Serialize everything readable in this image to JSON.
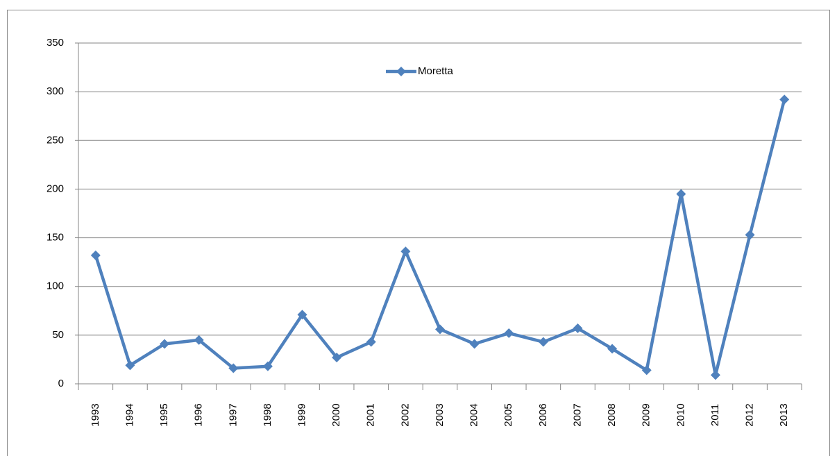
{
  "chart_data": {
    "type": "line",
    "categories": [
      "1993",
      "1994",
      "1995",
      "1996",
      "1997",
      "1998",
      "1999",
      "2000",
      "2001",
      "2002",
      "2003",
      "2004",
      "2005",
      "2006",
      "2007",
      "2008",
      "2009",
      "2010",
      "2011",
      "2012",
      "2013"
    ],
    "series": [
      {
        "name": "Moretta",
        "color": "#4f81bd",
        "values": [
          132,
          19,
          41,
          45,
          16,
          18,
          71,
          27,
          43,
          136,
          56,
          41,
          52,
          43,
          57,
          36,
          14,
          195,
          9,
          153,
          292
        ]
      }
    ],
    "ylim": [
      0,
      350
    ],
    "yticks": [
      0,
      50,
      100,
      150,
      200,
      250,
      300,
      350
    ],
    "grid": true,
    "legend": "top"
  }
}
